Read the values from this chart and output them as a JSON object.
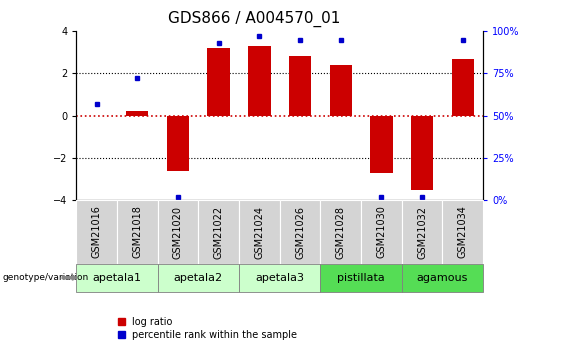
{
  "title": "GDS866 / A004570_01",
  "samples": [
    "GSM21016",
    "GSM21018",
    "GSM21020",
    "GSM21022",
    "GSM21024",
    "GSM21026",
    "GSM21028",
    "GSM21030",
    "GSM21032",
    "GSM21034"
  ],
  "log_ratio": [
    0.0,
    0.2,
    -2.6,
    3.2,
    3.3,
    2.8,
    2.4,
    -2.7,
    -3.5,
    2.7
  ],
  "percentile_rank": [
    57,
    72,
    2,
    93,
    97,
    95,
    95,
    2,
    2,
    95
  ],
  "ylim": [
    -4,
    4
  ],
  "y2lim": [
    0,
    100
  ],
  "yticks": [
    -4,
    -2,
    0,
    2,
    4
  ],
  "y2ticks": [
    0,
    25,
    50,
    75,
    100
  ],
  "y2ticklabels": [
    "0%",
    "25%",
    "50%",
    "75%",
    "100%"
  ],
  "bar_color": "#cc0000",
  "dot_color": "#0000cc",
  "hline_color": "#cc0000",
  "grid_color": "black",
  "groups": [
    {
      "label": "apetala1",
      "indices": [
        0,
        1
      ],
      "color": "#ccffcc"
    },
    {
      "label": "apetala2",
      "indices": [
        2,
        3
      ],
      "color": "#ccffcc"
    },
    {
      "label": "apetala3",
      "indices": [
        4,
        5
      ],
      "color": "#ccffcc"
    },
    {
      "label": "pistillata",
      "indices": [
        6,
        7
      ],
      "color": "#55dd55"
    },
    {
      "label": "agamous",
      "indices": [
        8,
        9
      ],
      "color": "#55dd55"
    }
  ],
  "genotype_label": "genotype/variation",
  "legend_items": [
    {
      "label": "log ratio",
      "color": "#cc0000"
    },
    {
      "label": "percentile rank within the sample",
      "color": "#0000cc"
    }
  ],
  "title_fontsize": 11,
  "tick_fontsize": 7,
  "label_fontsize": 8,
  "sample_cell_color": "#d4d4d4"
}
